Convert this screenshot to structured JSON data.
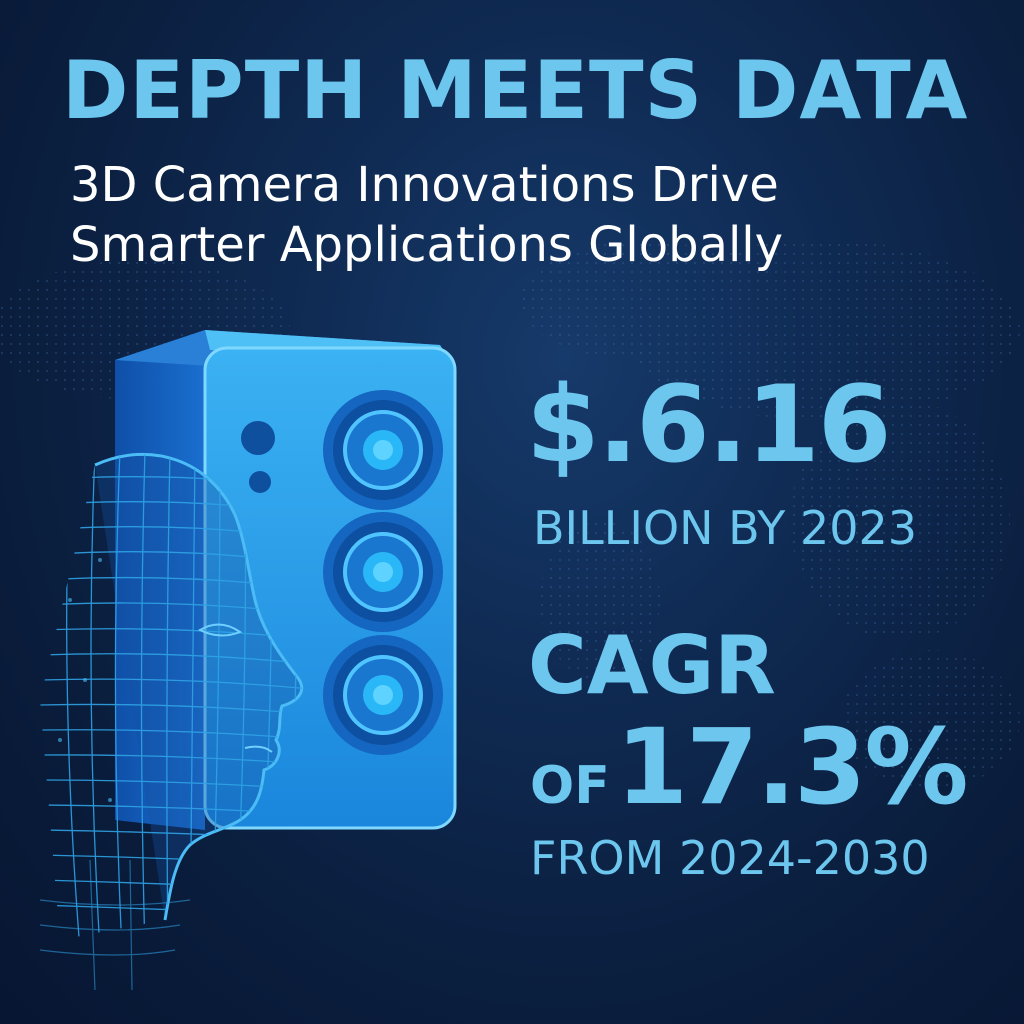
{
  "headline": "DEPTH MEETS DATA",
  "subheadline": {
    "line1": "3D Camera Innovations Drive",
    "line2": "Smarter Applications Globally"
  },
  "market_size": {
    "value": "$.6.16",
    "label": "BILLION BY 2023"
  },
  "growth": {
    "label": "CAGR",
    "prefix": "OF",
    "value": "17.3%",
    "period": "FROM 2024-2030"
  },
  "colors": {
    "background": "#0b1f3e",
    "accent": "#6cc6ee",
    "white_text": "#ffffff",
    "camera_body": "#1f8fe0",
    "wireframe": "#2fa3e6"
  },
  "icons": [
    "3d-camera-icon",
    "face-wireframe-icon",
    "world-map-dots"
  ]
}
